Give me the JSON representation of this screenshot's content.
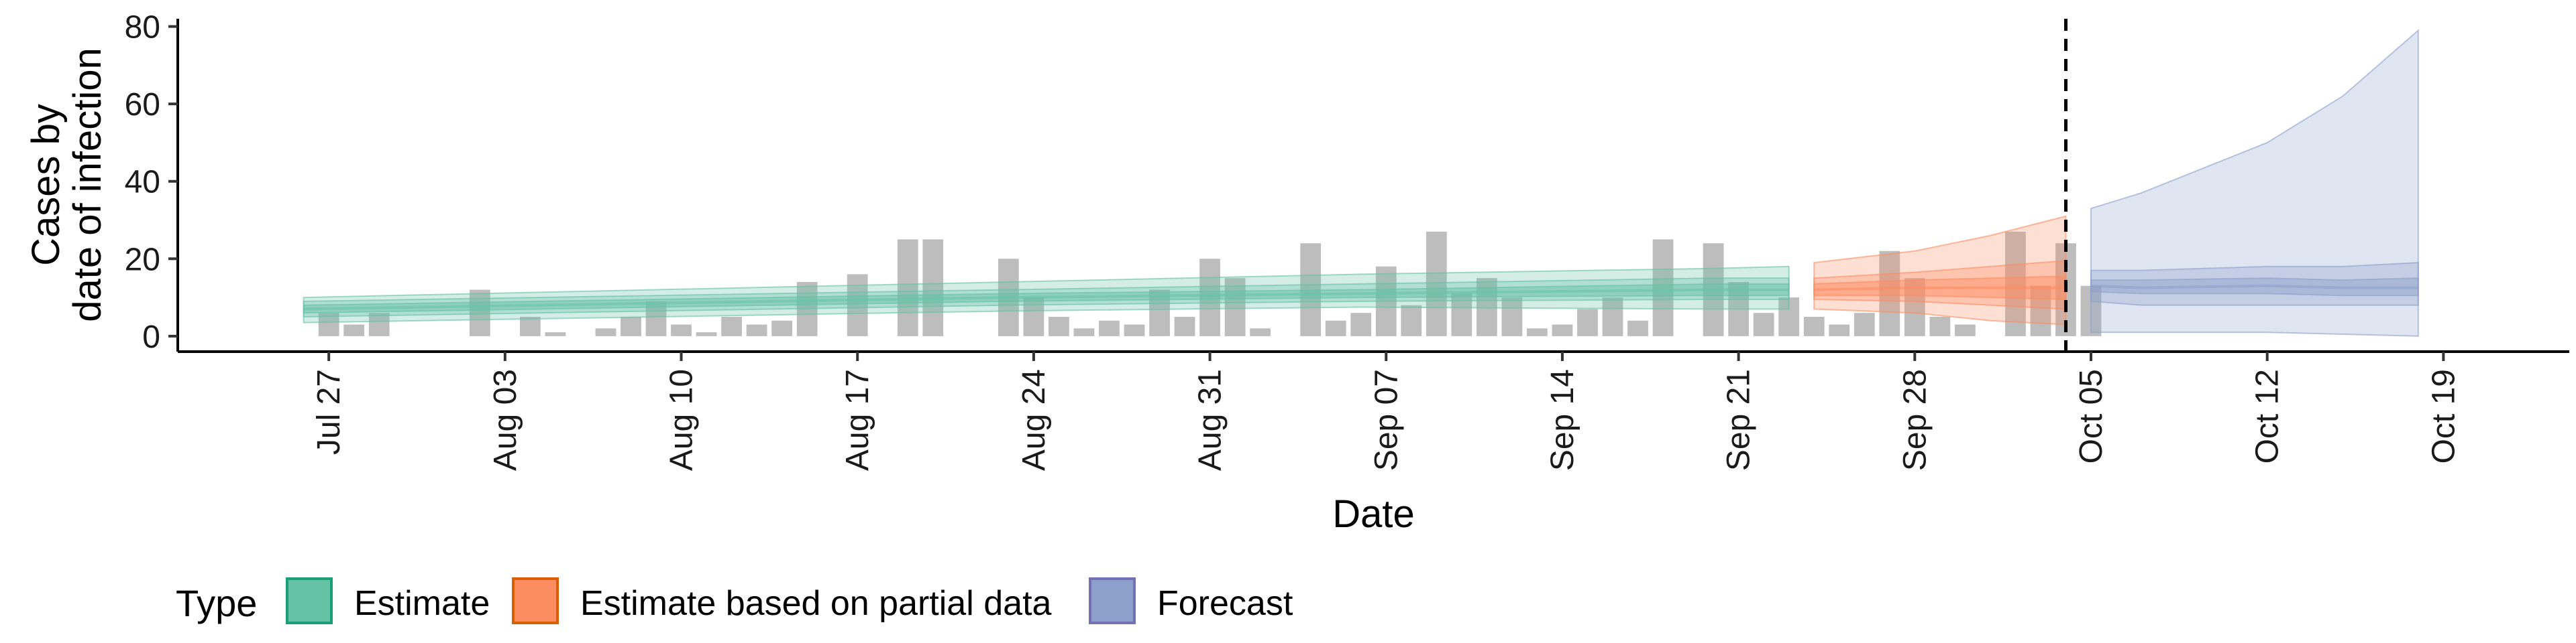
{
  "chart_data": {
    "type": "area",
    "title": "",
    "xlabel": "Date",
    "ylabel_lines": [
      "Cases by",
      "date of infection"
    ],
    "ylim": [
      -4,
      82
    ],
    "y_ticks": [
      0,
      20,
      40,
      60,
      80
    ],
    "x_range": [
      "2020-07-21",
      "2020-10-24"
    ],
    "x_ticks": [
      {
        "date": "2020-07-27",
        "label": "Jul 27"
      },
      {
        "date": "2020-08-03",
        "label": "Aug 03"
      },
      {
        "date": "2020-08-10",
        "label": "Aug 10"
      },
      {
        "date": "2020-08-17",
        "label": "Aug 17"
      },
      {
        "date": "2020-08-24",
        "label": "Aug 24"
      },
      {
        "date": "2020-08-31",
        "label": "Aug 31"
      },
      {
        "date": "2020-09-07",
        "label": "Sep 07"
      },
      {
        "date": "2020-09-14",
        "label": "Sep 14"
      },
      {
        "date": "2020-09-21",
        "label": "Sep 21"
      },
      {
        "date": "2020-09-28",
        "label": "Sep 28"
      },
      {
        "date": "2020-10-05",
        "label": "Oct 05"
      },
      {
        "date": "2020-10-12",
        "label": "Oct 12"
      },
      {
        "date": "2020-10-19",
        "label": "Oct 19"
      }
    ],
    "forecast_line_date": "2020-10-04",
    "bars": {
      "start_date": "2020-07-27",
      "color": "#bdbdbd",
      "values": [
        6,
        3,
        6,
        0,
        0,
        0,
        12,
        0,
        5,
        1,
        0,
        2,
        5,
        9,
        3,
        1,
        5,
        3,
        4,
        14,
        0,
        16,
        0,
        25,
        25,
        0,
        0,
        20,
        10,
        5,
        2,
        4,
        3,
        12,
        5,
        20,
        15,
        2,
        0,
        24,
        4,
        6,
        18,
        8,
        27,
        11,
        15,
        10,
        2,
        3,
        7,
        10,
        4,
        25,
        0,
        24,
        14,
        6,
        10,
        5,
        3,
        6,
        22,
        15,
        5,
        3,
        0,
        27,
        13,
        24,
        13
      ]
    },
    "series": [
      {
        "name": "Estimate",
        "color": "#1b9e77",
        "fill": "#66c2a5",
        "x": [
          "2020-07-26",
          "2020-08-09",
          "2020-08-23",
          "2020-09-06",
          "2020-09-20",
          "2020-09-23"
        ],
        "median": [
          7,
          8.5,
          10,
          11,
          12,
          12
        ],
        "inner_lo": [
          6,
          7.5,
          9,
          10,
          10.5,
          10.5
        ],
        "inner_hi": [
          8,
          9.5,
          11,
          12,
          13.5,
          13.5
        ],
        "mid_lo": [
          5,
          6.5,
          8,
          9,
          9.5,
          9.5
        ],
        "mid_hi": [
          9,
          10.5,
          12,
          13.5,
          15,
          15
        ],
        "outer_lo": [
          3.5,
          5,
          6.5,
          7.5,
          7,
          7
        ],
        "outer_hi": [
          10,
          12,
          14,
          16,
          17.5,
          18
        ]
      },
      {
        "name": "Estimate based on partial data",
        "color": "#d95f02",
        "fill": "#fc8d62",
        "x": [
          "2020-09-24",
          "2020-09-28",
          "2020-10-01",
          "2020-10-04"
        ],
        "median": [
          12,
          12.5,
          12.5,
          12.5
        ],
        "inner_lo": [
          10.5,
          10.5,
          10,
          9.5
        ],
        "inner_hi": [
          13.5,
          14.5,
          15,
          15.5
        ],
        "mid_lo": [
          9.5,
          9,
          8,
          7
        ],
        "mid_hi": [
          15,
          16.5,
          18,
          19.5
        ],
        "outer_lo": [
          7,
          6,
          4,
          3
        ],
        "outer_hi": [
          19,
          22,
          26,
          31
        ]
      },
      {
        "name": "Forecast",
        "color": "#7570b3",
        "fill": "#8da0cb",
        "x": [
          "2020-10-05",
          "2020-10-07",
          "2020-10-12",
          "2020-10-15",
          "2020-10-18"
        ],
        "median": [
          13,
          12.5,
          13,
          12.5,
          12.5
        ],
        "inner_lo": [
          11.5,
          11,
          11,
          10.5,
          10.5
        ],
        "inner_hi": [
          14.5,
          14.5,
          15,
          14.5,
          15
        ],
        "mid_lo": [
          9,
          8,
          8,
          8,
          8
        ],
        "mid_hi": [
          17,
          17,
          18,
          18,
          19
        ],
        "outer_lo": [
          1,
          1,
          1,
          0.5,
          0
        ],
        "outer_hi": [
          33,
          37,
          50,
          62,
          79
        ]
      }
    ],
    "legend": {
      "position": "bottom",
      "title": "Type",
      "entries": [
        {
          "label": "Estimate",
          "swatch_fill": "#66c2a5",
          "swatch_border": "#1b9e77"
        },
        {
          "label": "Estimate based on partial data",
          "swatch_fill": "#fc8d62",
          "swatch_border": "#d95f02"
        },
        {
          "label": "Forecast",
          "swatch_fill": "#8da0cb",
          "swatch_border": "#7570b3"
        }
      ]
    },
    "grid": false
  }
}
